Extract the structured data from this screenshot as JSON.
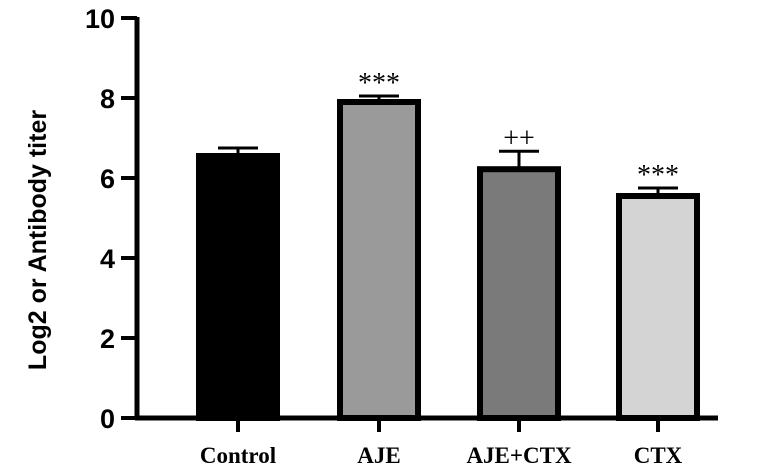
{
  "chart_data": {
    "type": "bar",
    "title": "",
    "xlabel": "",
    "ylabel": "Log2 or Antibody titer",
    "ylim": [
      0,
      10
    ],
    "yticks": [
      "0",
      "2",
      "4",
      "6",
      "8",
      "10"
    ],
    "categories": [
      "Control",
      "AJE",
      "AJE+CTX",
      "CTX"
    ],
    "values": [
      6.55,
      7.9,
      6.22,
      5.55
    ],
    "errors": [
      0.2,
      0.15,
      0.45,
      0.2
    ],
    "annotations": [
      "",
      "***",
      "++",
      "***"
    ],
    "bar_colors": [
      "#000000",
      "#9a9a9a",
      "#7a7a7a",
      "#d4d4d4"
    ],
    "grid": false,
    "legend": "none"
  }
}
